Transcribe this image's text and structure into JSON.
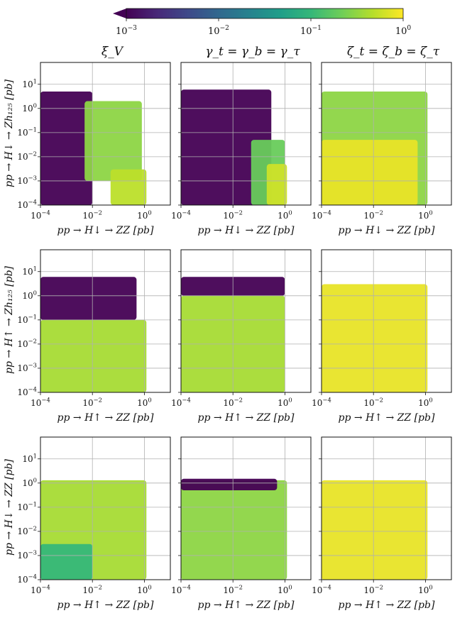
{
  "colorbar": {
    "ticks": [
      "10^-3",
      "10^-2",
      "10^-1",
      "10^0"
    ],
    "colors": [
      "#440154",
      "#482878",
      "#3e4989",
      "#31688e",
      "#26828e",
      "#1f9e89",
      "#35b779",
      "#6ece58",
      "#b5de2b",
      "#fde725"
    ]
  },
  "columns": [
    {
      "title": "ξ_V"
    },
    {
      "title": "γ_t = γ_b = γ_τ"
    },
    {
      "title": "ζ_t = ζ_b = ζ_τ"
    }
  ],
  "rows": [
    {
      "ylabel": "pp → H↓ → Zh₁₂₅ [pb]",
      "xlabel": "pp → H↓ → ZZ [pb]"
    },
    {
      "ylabel": "pp → H↑ → Zh₁₂₅ [pb]",
      "xlabel": "pp → H↑ → ZZ [pb]"
    },
    {
      "ylabel": "pp → H↓ → ZZ [pb]",
      "xlabel": "pp → H↑ → ZZ [pb]"
    }
  ],
  "chart_data": {
    "type": "scatter",
    "xscale": "log",
    "yscale": "log",
    "xlim": [
      0.0001,
      10
    ],
    "ylim": [
      0.0001,
      80
    ],
    "xticks": [
      "10^-4",
      "10^-2",
      "10^0"
    ],
    "yticks": [
      "10^-4",
      "10^-3",
      "10^-2",
      "10^-1",
      "10^0",
      "10^1"
    ],
    "grid": true,
    "panels": [
      {
        "row": 0,
        "col": 0,
        "envelope_top_y": 8,
        "envelope_right_x": 1.3,
        "regions": [
          {
            "x": [
              0.0001,
              0.01
            ],
            "y": [
              0.0001,
              5
            ],
            "color_value": 0.001
          },
          {
            "x": [
              0.005,
              0.8
            ],
            "y": [
              0.001,
              2
            ],
            "color_value": 0.3
          },
          {
            "x": [
              0.05,
              1.2
            ],
            "y": [
              0.0001,
              0.003
            ],
            "color_value": 0.5
          }
        ]
      },
      {
        "row": 0,
        "col": 1,
        "envelope_top_y": 8,
        "envelope_right_x": 1.2,
        "regions": [
          {
            "x": [
              0.0001,
              0.3
            ],
            "y": [
              0.0001,
              6
            ],
            "color_value": 0.001
          },
          {
            "x": [
              0.05,
              1
            ],
            "y": [
              0.0001,
              0.05
            ],
            "color_value": 0.2
          },
          {
            "x": [
              0.2,
              1.2
            ],
            "y": [
              0.0001,
              0.005
            ],
            "color_value": 0.6
          }
        ]
      },
      {
        "row": 0,
        "col": 2,
        "envelope_top_y": 8,
        "envelope_right_x": 1.2,
        "regions": [
          {
            "x": [
              0.0001,
              1.2
            ],
            "y": [
              0.0001,
              5
            ],
            "color_value": 0.3
          },
          {
            "x": [
              0.0001,
              0.5
            ],
            "y": [
              0.0001,
              0.05
            ],
            "color_value": 0.8
          }
        ]
      },
      {
        "row": 1,
        "col": 0,
        "envelope_top_y": 8,
        "envelope_right_x": 1.3,
        "regions": [
          {
            "x": [
              0.0001,
              0.5
            ],
            "y": [
              0.1,
              6
            ],
            "color_value": 0.001
          },
          {
            "x": [
              0.0001,
              1.2
            ],
            "y": [
              0.0001,
              0.1
            ],
            "color_value": 0.4
          }
        ]
      },
      {
        "row": 1,
        "col": 1,
        "envelope_top_y": 8,
        "envelope_right_x": 1.1,
        "regions": [
          {
            "x": [
              0.0001,
              1
            ],
            "y": [
              1,
              6
            ],
            "color_value": 0.001
          },
          {
            "x": [
              0.0001,
              1
            ],
            "y": [
              0.0001,
              1
            ],
            "color_value": 0.4
          }
        ]
      },
      {
        "row": 1,
        "col": 2,
        "envelope_top_y": 8,
        "envelope_right_x": 1.2,
        "regions": [
          {
            "x": [
              0.0001,
              1.2
            ],
            "y": [
              0.0001,
              3
            ],
            "color_value": 0.8
          }
        ]
      },
      {
        "row": 2,
        "col": 0,
        "envelope_top_y": 1.5,
        "envelope_right_x": 1.3,
        "regions": [
          {
            "x": [
              0.0001,
              1.2
            ],
            "y": [
              0.0001,
              1.3
            ],
            "color_value": 0.4
          },
          {
            "x": [
              0.0001,
              0.01
            ],
            "y": [
              0.0001,
              0.003
            ],
            "color_value": 0.1
          }
        ]
      },
      {
        "row": 2,
        "col": 1,
        "envelope_top_y": 1.5,
        "envelope_right_x": 1.2,
        "regions": [
          {
            "x": [
              0.0001,
              1.2
            ],
            "y": [
              0.0001,
              1.3
            ],
            "color_value": 0.3
          },
          {
            "x": [
              0.0001,
              0.5
            ],
            "y": [
              0.5,
              1.5
            ],
            "color_value": 0.001
          }
        ]
      },
      {
        "row": 2,
        "col": 2,
        "envelope_top_y": 1.5,
        "envelope_right_x": 1.2,
        "regions": [
          {
            "x": [
              0.0001,
              1.2
            ],
            "y": [
              0.0001,
              1.3
            ],
            "color_value": 0.8
          }
        ]
      }
    ]
  }
}
